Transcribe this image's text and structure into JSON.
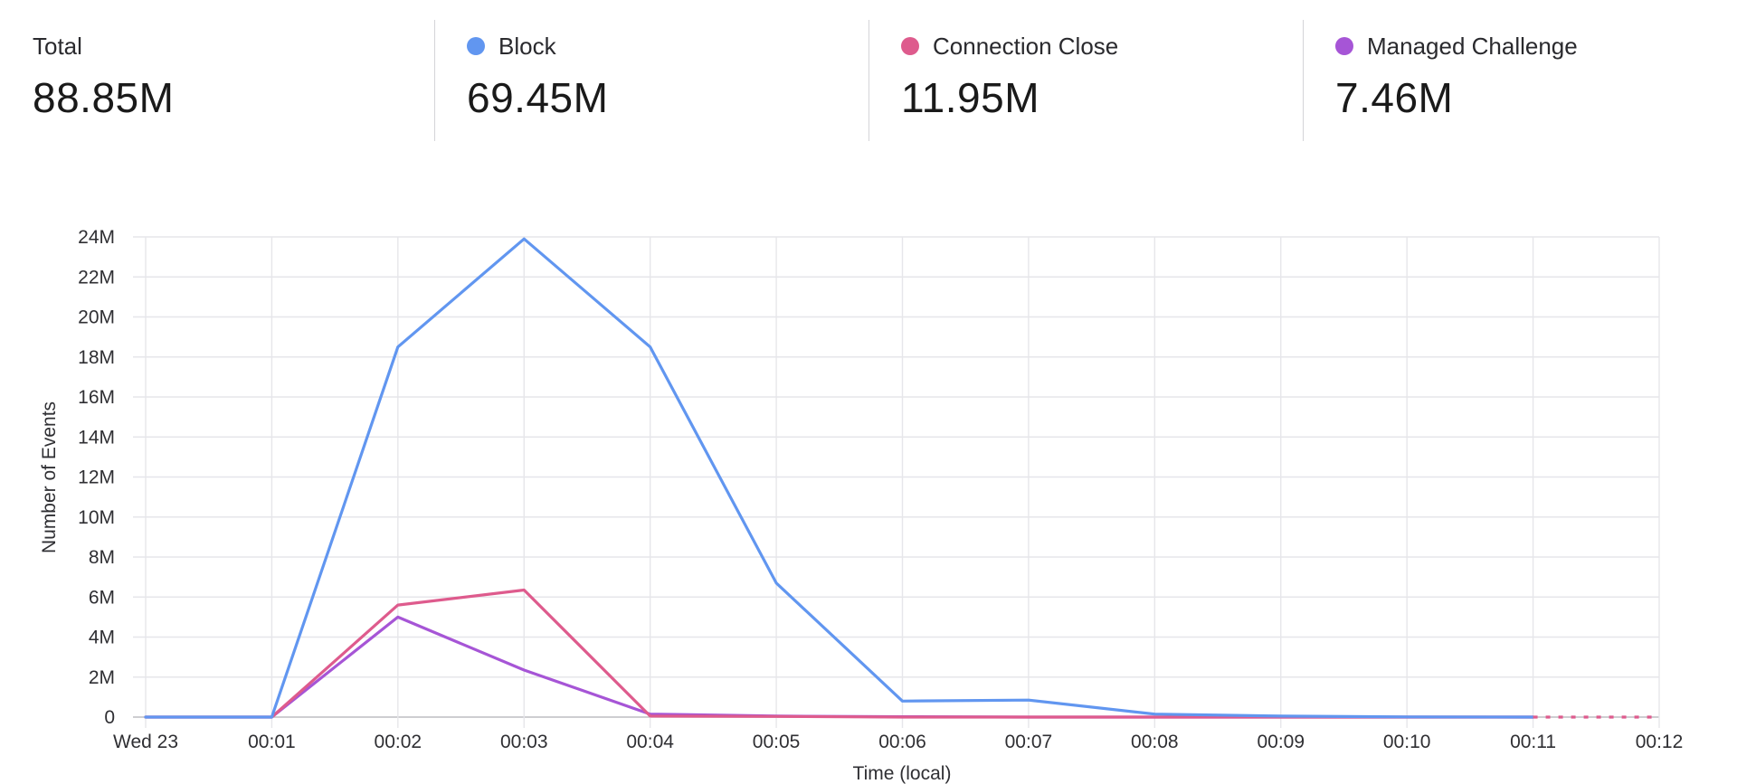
{
  "summary": {
    "total": {
      "label": "Total",
      "value": "88.85M"
    },
    "items": [
      {
        "label": "Block",
        "value": "69.45M",
        "color": "#6196f0"
      },
      {
        "label": "Connection Close",
        "value": "11.95M",
        "color": "#de5b8d"
      },
      {
        "label": "Managed Challenge",
        "value": "7.46M",
        "color": "#a655d6"
      }
    ]
  },
  "chart_data": {
    "type": "line",
    "xlabel": "Time (local)",
    "ylabel": "Number of Events",
    "categories": [
      "Wed 23",
      "00:01",
      "00:02",
      "00:03",
      "00:04",
      "00:05",
      "00:06",
      "00:07",
      "00:08",
      "00:09",
      "00:10",
      "00:11",
      "00:12"
    ],
    "y_ticks": [
      "0",
      "2M",
      "4M",
      "6M",
      "8M",
      "10M",
      "12M",
      "14M",
      "16M",
      "18M",
      "20M",
      "22M",
      "24M"
    ],
    "ylim": [
      0,
      24
    ],
    "y_unit_multiplier": 1000000,
    "grid": true,
    "legend": "top",
    "series": [
      {
        "name": "Block",
        "color": "#6196f0",
        "values": [
          0,
          0,
          18.5,
          23.9,
          18.5,
          6.7,
          0.8,
          0.85,
          0.15,
          0.05,
          0.01,
          0,
          null
        ]
      },
      {
        "name": "Connection Close",
        "color": "#de5b8d",
        "values": [
          0,
          0,
          5.6,
          6.35,
          0.05,
          0.03,
          0,
          0,
          0,
          0,
          0,
          0,
          null
        ]
      },
      {
        "name": "Managed Challenge",
        "color": "#a655d6",
        "values": [
          0,
          0,
          5.0,
          2.35,
          0.15,
          0.05,
          0.02,
          0,
          0,
          0,
          0,
          0,
          null
        ]
      }
    ],
    "projection": {
      "from_index": 11,
      "to_index": 12,
      "color": "#de5b8d"
    }
  }
}
